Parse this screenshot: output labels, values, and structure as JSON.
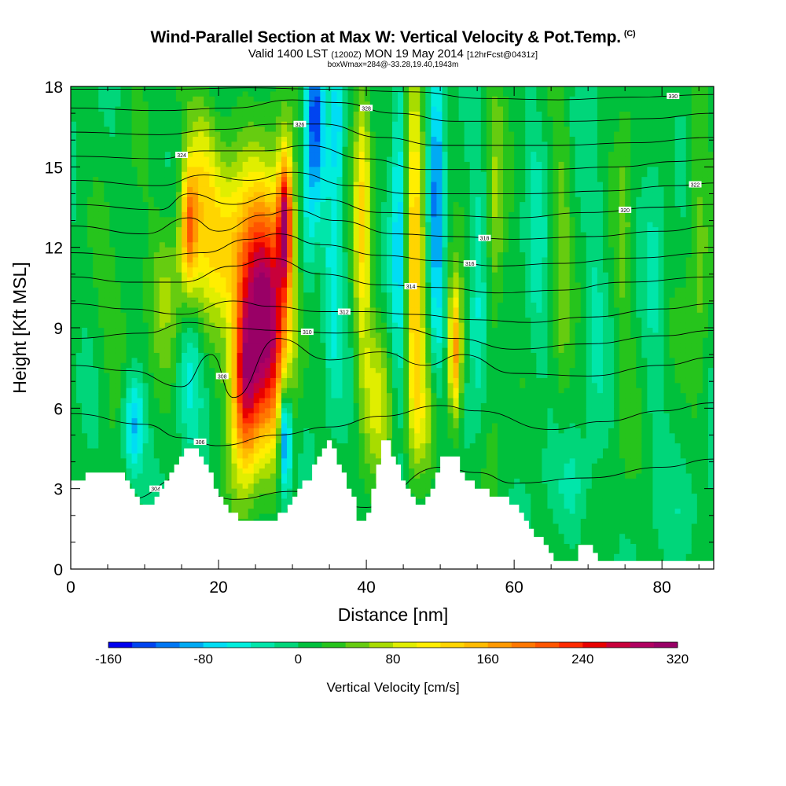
{
  "header": {
    "title": "Wind-Parallel Section at Max W: Vertical Velocity & Pot.Temp.",
    "copyright": "(C)",
    "valid_prefix": "Valid 1400 LST",
    "valid_utc": "(1200Z)",
    "valid_date": "MON 19 May 2014",
    "forecast": "[12hrFcst@0431z]",
    "box_info": "boxWmax=284@-33.28,19.40,1943m"
  },
  "chart_data": {
    "type": "heatmap",
    "title": "Wind-Parallel Section at Max W: Vertical Velocity & Pot.Temp.",
    "xlabel": "Distance [nm]",
    "ylabel": "Height [Kft MSL]",
    "xlim": [
      0,
      87
    ],
    "ylim": [
      0,
      18
    ],
    "x_ticks": [
      0,
      20,
      40,
      60,
      80
    ],
    "y_ticks": [
      0,
      3,
      6,
      9,
      12,
      15,
      18
    ],
    "x_tick_labels": [
      "0",
      "20",
      "40",
      "60",
      "80"
    ],
    "y_tick_labels": [
      "0",
      "3",
      "6",
      "9",
      "12",
      "15",
      "18"
    ],
    "colorbar": {
      "title": "Vertical Velocity [cm/s]",
      "min": -160,
      "max": 320,
      "step": 20,
      "labels": [
        "-160",
        "-80",
        "0",
        "80",
        "160",
        "240",
        "320"
      ],
      "label_values": [
        -160,
        -80,
        0,
        80,
        160,
        240,
        320
      ],
      "colors": [
        "#0000ee",
        "#0044f0",
        "#0077f4",
        "#00aaf4",
        "#00ddf4",
        "#00eedd",
        "#00e6aa",
        "#00d67a",
        "#00c03c",
        "#26c41c",
        "#66cc10",
        "#a8dc00",
        "#e0ee00",
        "#ffee00",
        "#ffd500",
        "#ffbb00",
        "#ff9900",
        "#ff7700",
        "#ff5500",
        "#ff2a00",
        "#e80000",
        "#c8003a",
        "#b00060",
        "#990066"
      ]
    },
    "terrain_kft": [
      [
        0,
        3.3
      ],
      [
        2,
        3.5
      ],
      [
        7,
        3.5
      ],
      [
        9,
        2.4
      ],
      [
        11,
        2.5
      ],
      [
        13,
        3.3
      ],
      [
        15,
        4.5
      ],
      [
        17,
        4.5
      ],
      [
        19,
        3.3
      ],
      [
        21,
        2.2
      ],
      [
        23,
        1.9
      ],
      [
        25,
        1.7
      ],
      [
        26,
        1.8
      ],
      [
        28,
        2.0
      ],
      [
        30,
        2.7
      ],
      [
        32,
        3.4
      ],
      [
        34,
        4.6
      ],
      [
        35,
        4.9
      ],
      [
        36,
        4.0
      ],
      [
        37,
        3.2
      ],
      [
        38,
        2.6
      ],
      [
        39,
        1.4
      ],
      [
        40,
        2.2
      ],
      [
        41,
        3.5
      ],
      [
        42,
        4.9
      ],
      [
        43,
        4.6
      ],
      [
        44,
        3.8
      ],
      [
        45,
        3.2
      ],
      [
        46,
        2.6
      ],
      [
        47,
        2.4
      ],
      [
        49,
        3.3
      ],
      [
        50,
        4.3
      ],
      [
        52,
        4.1
      ],
      [
        53,
        3.3
      ],
      [
        55,
        3.0
      ],
      [
        57,
        2.8
      ],
      [
        58,
        2.7
      ],
      [
        60,
        2.3
      ],
      [
        62,
        1.6
      ],
      [
        63,
        1.2
      ],
      [
        64,
        0.8
      ],
      [
        65,
        0.5
      ],
      [
        66,
        0.3
      ],
      [
        68,
        0.4
      ],
      [
        69,
        1.0
      ],
      [
        70,
        1.0
      ],
      [
        71,
        0.4
      ],
      [
        72,
        0.3
      ],
      [
        87,
        0.3
      ]
    ],
    "velocity_features": [
      {
        "x": 26.5,
        "y": 9.5,
        "sx": 2.2,
        "sy": 3.2,
        "w": 300
      },
      {
        "x": 23.5,
        "y": 7.0,
        "sx": 1.3,
        "sy": 2.4,
        "w": 200
      },
      {
        "x": 29.0,
        "y": 13.0,
        "sx": 0.7,
        "sy": 1.8,
        "w": 230
      },
      {
        "x": 21.0,
        "y": 12.0,
        "sx": 3.0,
        "sy": 2.2,
        "w": 110
      },
      {
        "x": 16.0,
        "y": 12.8,
        "sx": 0.8,
        "sy": 1.6,
        "w": 150
      },
      {
        "x": 18.0,
        "y": 15.0,
        "sx": 1.6,
        "sy": 2.0,
        "w": 80
      },
      {
        "x": 29.0,
        "y": 5.0,
        "sx": 0.6,
        "sy": 1.5,
        "w": -160
      },
      {
        "x": 8.5,
        "y": 5.3,
        "sx": 1.0,
        "sy": 1.3,
        "w": -100
      },
      {
        "x": 33.0,
        "y": 17.0,
        "sx": 0.9,
        "sy": 2.5,
        "w": -130
      },
      {
        "x": 36.0,
        "y": 17.0,
        "sx": 0.6,
        "sy": 2.0,
        "w": -80
      },
      {
        "x": 32.0,
        "y": 12.0,
        "sx": 0.8,
        "sy": 2.0,
        "w": -50
      },
      {
        "x": 35.5,
        "y": 10.5,
        "sx": 1.0,
        "sy": 3.0,
        "w": -60
      },
      {
        "x": 39.5,
        "y": 13.0,
        "sx": 0.8,
        "sy": 4.0,
        "w": 110
      },
      {
        "x": 41.5,
        "y": 6.5,
        "sx": 1.4,
        "sy": 2.0,
        "w": 70
      },
      {
        "x": 44.5,
        "y": 13.0,
        "sx": 0.8,
        "sy": 4.5,
        "w": -90
      },
      {
        "x": 46.5,
        "y": 12.0,
        "sx": 0.9,
        "sy": 5.0,
        "w": 140
      },
      {
        "x": 49.5,
        "y": 13.5,
        "sx": 0.7,
        "sy": 4.5,
        "w": -110
      },
      {
        "x": 52.0,
        "y": 8.0,
        "sx": 0.6,
        "sy": 1.8,
        "w": 170
      },
      {
        "x": 55.0,
        "y": 10.0,
        "sx": 0.8,
        "sy": 3.5,
        "w": -50
      },
      {
        "x": 48.0,
        "y": 5.5,
        "sx": 1.5,
        "sy": 1.5,
        "w": 60
      },
      {
        "x": 13.0,
        "y": 10.5,
        "sx": 1.8,
        "sy": 2.0,
        "w": 50
      },
      {
        "x": 16.0,
        "y": 7.5,
        "sx": 1.2,
        "sy": 1.8,
        "w": -50
      },
      {
        "x": 6.5,
        "y": 9.0,
        "sx": 2.0,
        "sy": 2.0,
        "w": 25
      },
      {
        "x": 57.5,
        "y": 13.0,
        "sx": 0.8,
        "sy": 4.0,
        "w": 50
      },
      {
        "x": 63.0,
        "y": 12.0,
        "sx": 1.0,
        "sy": 5.0,
        "w": -30
      },
      {
        "x": 66.5,
        "y": 12.0,
        "sx": 0.8,
        "sy": 5.0,
        "w": 40
      },
      {
        "x": 71.0,
        "y": 11.0,
        "sx": 1.0,
        "sy": 5.0,
        "w": -25
      },
      {
        "x": 75.0,
        "y": 12.0,
        "sx": 0.8,
        "sy": 5.0,
        "w": 35
      },
      {
        "x": 79.0,
        "y": 11.0,
        "sx": 1.0,
        "sy": 5.0,
        "w": -25
      },
      {
        "x": 85.0,
        "y": 12.0,
        "sx": 1.0,
        "sy": 5.0,
        "w": 40
      },
      {
        "x": 68.0,
        "y": 3.0,
        "sx": 2.0,
        "sy": 1.3,
        "w": -30
      },
      {
        "x": 84.0,
        "y": 2.0,
        "sx": 2.0,
        "sy": 1.5,
        "w": -25
      }
    ],
    "theta_isentropes": [
      {
        "label": "304",
        "pts": [
          [
            0,
            3.0
          ],
          [
            8,
            2.6
          ],
          [
            15,
            3.4
          ],
          [
            22,
            2.6
          ],
          [
            30,
            2.9
          ],
          [
            40,
            2.3
          ],
          [
            50,
            3.8
          ],
          [
            55,
            3.6
          ],
          [
            60,
            3.2
          ],
          [
            70,
            3.4
          ],
          [
            80,
            3.8
          ],
          [
            87,
            4.1
          ]
        ]
      },
      {
        "label": "306",
        "pts": [
          [
            0,
            5.8
          ],
          [
            10,
            5.4
          ],
          [
            15,
            4.9
          ],
          [
            20,
            4.6
          ],
          [
            28,
            5.0
          ],
          [
            35,
            5.3
          ],
          [
            42,
            5.7
          ],
          [
            50,
            6.1
          ],
          [
            55,
            5.9
          ],
          [
            65,
            5.2
          ],
          [
            72,
            5.5
          ],
          [
            80,
            5.9
          ],
          [
            87,
            6.2
          ]
        ]
      },
      {
        "label": "308",
        "pts": [
          [
            0,
            7.6
          ],
          [
            8,
            7.4
          ],
          [
            15,
            6.8
          ],
          [
            19,
            8.0
          ],
          [
            22,
            6.4
          ],
          [
            28,
            8.6
          ],
          [
            35,
            7.8
          ],
          [
            42,
            8.1
          ],
          [
            48,
            7.6
          ],
          [
            53,
            8.0
          ],
          [
            60,
            7.3
          ],
          [
            70,
            7.2
          ],
          [
            80,
            7.6
          ],
          [
            87,
            7.9
          ]
        ]
      },
      {
        "label": "310",
        "pts": [
          [
            0,
            8.6
          ],
          [
            10,
            8.8
          ],
          [
            16,
            9.2
          ],
          [
            21,
            9.0
          ],
          [
            28,
            8.9
          ],
          [
            36,
            8.8
          ],
          [
            44,
            9.0
          ],
          [
            52,
            8.6
          ],
          [
            60,
            8.2
          ],
          [
            70,
            8.4
          ],
          [
            80,
            8.7
          ],
          [
            87,
            8.9
          ]
        ]
      },
      {
        "label": "312",
        "pts": [
          [
            0,
            9.9
          ],
          [
            8,
            9.7
          ],
          [
            15,
            9.5
          ],
          [
            22,
            10.0
          ],
          [
            27,
            9.8
          ],
          [
            34,
            9.6
          ],
          [
            40,
            9.6
          ],
          [
            46,
            9.5
          ],
          [
            55,
            9.3
          ],
          [
            62,
            9.2
          ],
          [
            70,
            9.4
          ],
          [
            80,
            9.7
          ],
          [
            87,
            9.9
          ]
        ]
      },
      {
        "label": "314",
        "pts": [
          [
            0,
            10.9
          ],
          [
            8,
            10.7
          ],
          [
            15,
            10.7
          ],
          [
            22,
            11.3
          ],
          [
            27,
            11.6
          ],
          [
            34,
            11.0
          ],
          [
            42,
            10.6
          ],
          [
            50,
            10.5
          ],
          [
            58,
            10.3
          ],
          [
            66,
            10.4
          ],
          [
            75,
            10.7
          ],
          [
            87,
            10.9
          ]
        ]
      },
      {
        "label": "316",
        "pts": [
          [
            0,
            11.8
          ],
          [
            10,
            11.6
          ],
          [
            18,
            11.8
          ],
          [
            24,
            12.3
          ],
          [
            28,
            12.5
          ],
          [
            34,
            12.1
          ],
          [
            42,
            11.7
          ],
          [
            50,
            11.5
          ],
          [
            58,
            11.3
          ],
          [
            66,
            11.4
          ],
          [
            76,
            11.6
          ],
          [
            87,
            11.8
          ]
        ]
      },
      {
        "label": "318",
        "pts": [
          [
            0,
            12.8
          ],
          [
            10,
            12.5
          ],
          [
            16,
            13.1
          ],
          [
            20,
            12.6
          ],
          [
            26,
            13.2
          ],
          [
            30,
            13.4
          ],
          [
            36,
            13.0
          ],
          [
            44,
            12.5
          ],
          [
            52,
            12.4
          ],
          [
            60,
            12.3
          ],
          [
            70,
            12.4
          ],
          [
            80,
            12.6
          ],
          [
            87,
            12.8
          ]
        ]
      },
      {
        "label": "320",
        "pts": [
          [
            0,
            13.6
          ],
          [
            12,
            13.4
          ],
          [
            16,
            14.0
          ],
          [
            22,
            13.6
          ],
          [
            28,
            14.0
          ],
          [
            34,
            13.8
          ],
          [
            42,
            13.3
          ],
          [
            50,
            13.2
          ],
          [
            60,
            13.1
          ],
          [
            70,
            13.3
          ],
          [
            80,
            13.5
          ],
          [
            87,
            13.6
          ]
        ]
      },
      {
        "label": "322",
        "pts": [
          [
            0,
            14.5
          ],
          [
            12,
            14.3
          ],
          [
            18,
            14.7
          ],
          [
            24,
            14.5
          ],
          [
            30,
            14.8
          ],
          [
            38,
            14.3
          ],
          [
            46,
            14.0
          ],
          [
            54,
            14.0
          ],
          [
            62,
            14.0
          ],
          [
            72,
            14.1
          ],
          [
            82,
            14.3
          ],
          [
            87,
            14.4
          ]
        ]
      },
      {
        "label": "324",
        "pts": [
          [
            0,
            15.4
          ],
          [
            12,
            15.3
          ],
          [
            18,
            15.6
          ],
          [
            26,
            15.6
          ],
          [
            32,
            15.8
          ],
          [
            40,
            15.3
          ],
          [
            48,
            14.9
          ],
          [
            56,
            14.9
          ],
          [
            64,
            14.9
          ],
          [
            74,
            15.0
          ],
          [
            82,
            15.2
          ],
          [
            87,
            15.3
          ]
        ]
      },
      {
        "label": "326",
        "pts": [
          [
            0,
            16.3
          ],
          [
            12,
            16.2
          ],
          [
            20,
            16.4
          ],
          [
            28,
            16.6
          ],
          [
            34,
            16.6
          ],
          [
            42,
            16.1
          ],
          [
            50,
            15.8
          ],
          [
            58,
            15.8
          ],
          [
            66,
            15.8
          ],
          [
            76,
            15.9
          ],
          [
            87,
            16.1
          ]
        ]
      },
      {
        "label": "328",
        "pts": [
          [
            0,
            17.2
          ],
          [
            12,
            17.1
          ],
          [
            22,
            17.2
          ],
          [
            30,
            17.5
          ],
          [
            36,
            17.4
          ],
          [
            44,
            17.0
          ],
          [
            52,
            16.7
          ],
          [
            60,
            16.7
          ],
          [
            68,
            16.7
          ],
          [
            78,
            16.8
          ],
          [
            87,
            17.0
          ]
        ]
      },
      {
        "label": "330",
        "pts": [
          [
            0,
            17.9
          ],
          [
            14,
            17.9
          ],
          [
            24,
            17.95
          ],
          [
            34,
            17.9
          ],
          [
            46,
            17.8
          ],
          [
            56,
            17.55
          ],
          [
            66,
            17.5
          ],
          [
            76,
            17.6
          ],
          [
            87,
            17.7
          ]
        ]
      }
    ]
  }
}
